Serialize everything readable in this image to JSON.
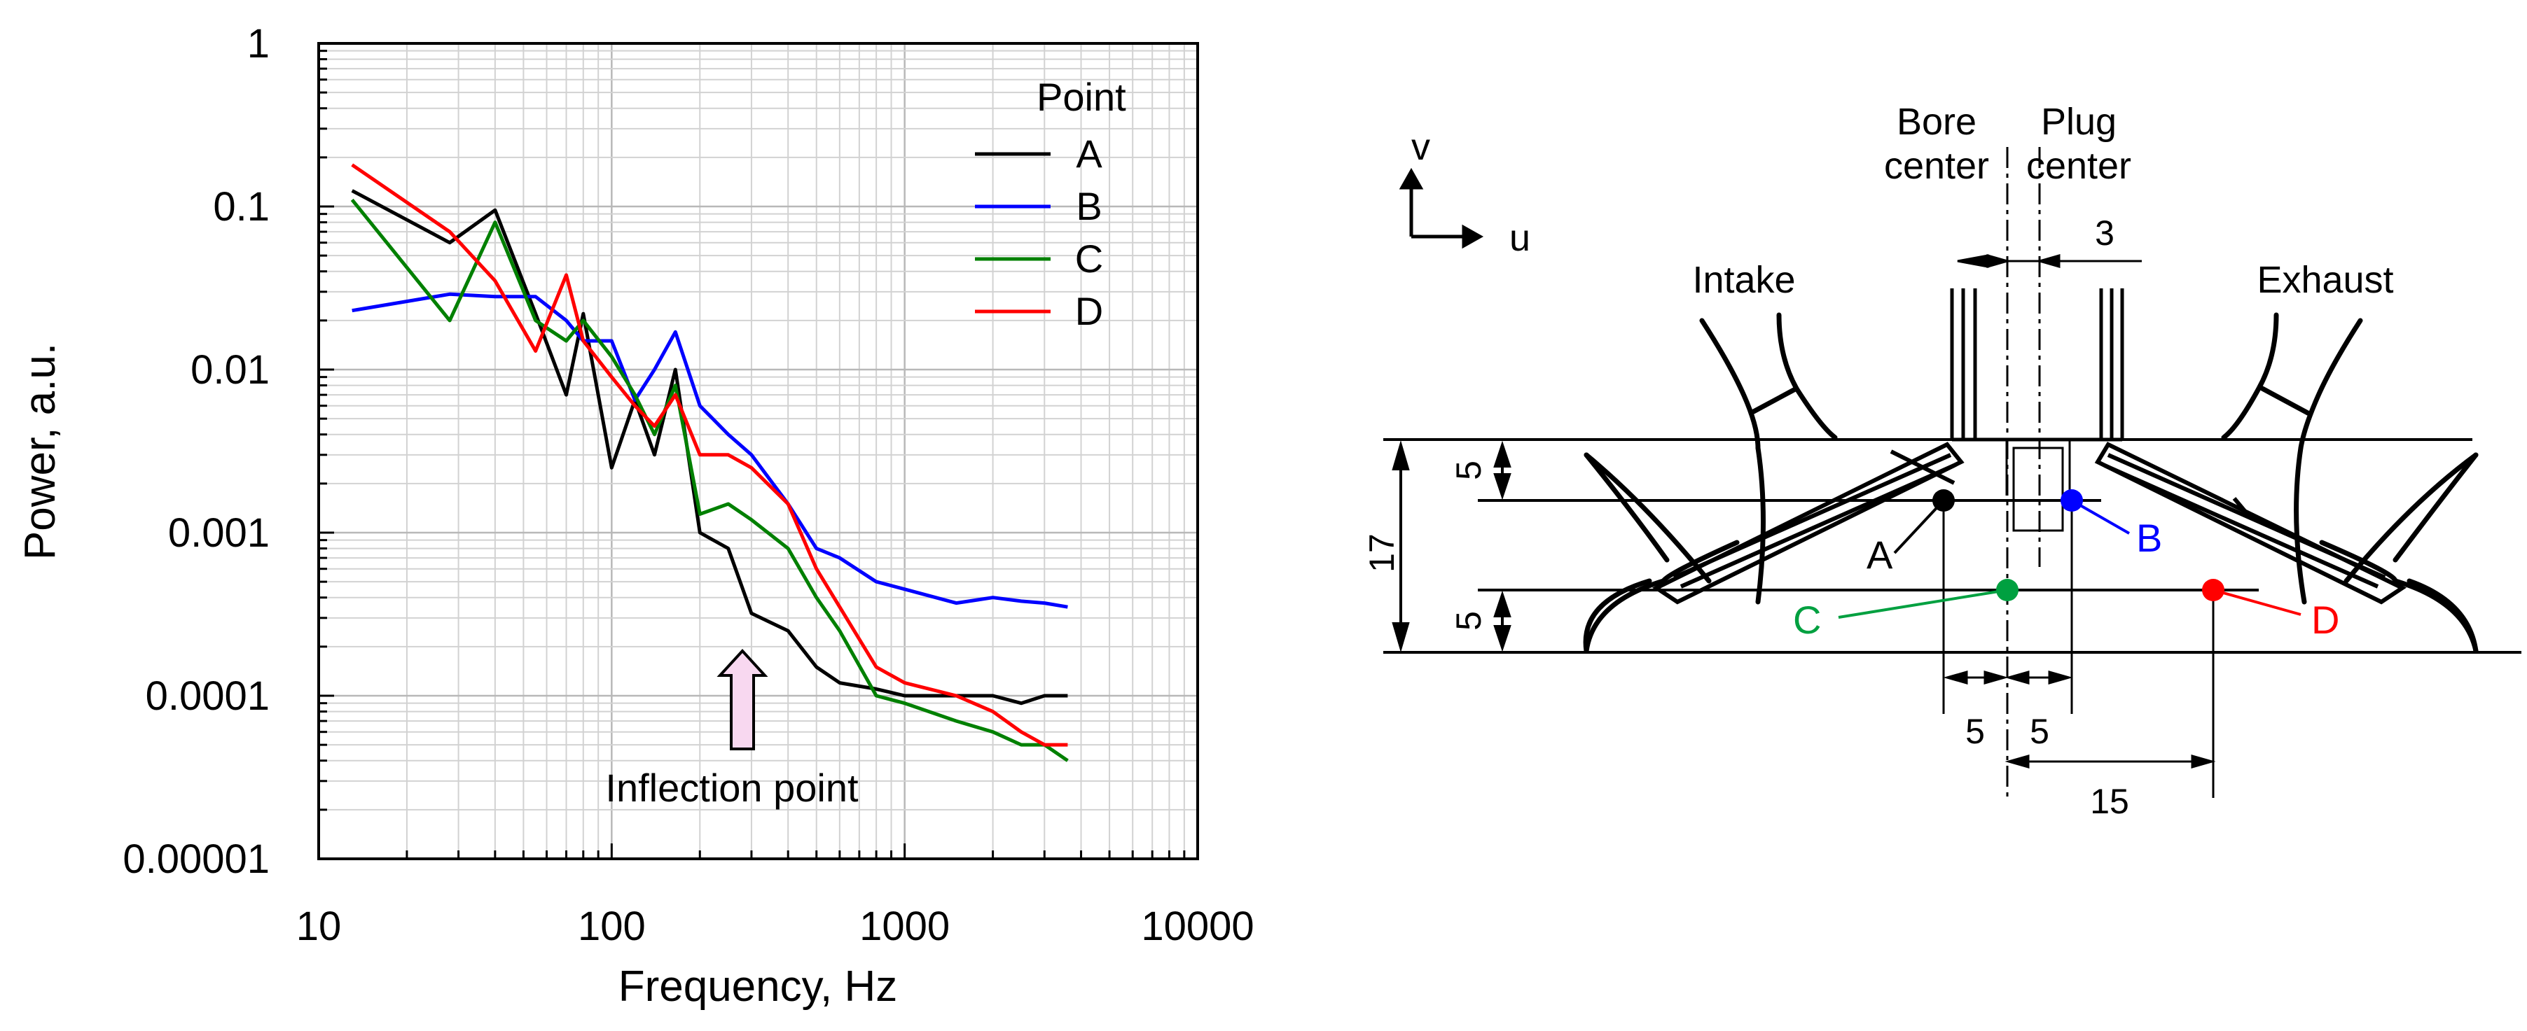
{
  "chart_data": {
    "type": "line",
    "xlabel": "Frequency, Hz",
    "ylabel": "Power, a.u.",
    "xscale": "log",
    "yscale": "log",
    "xlim": [
      10,
      10000
    ],
    "ylim": [
      1e-05,
      1
    ],
    "x_ticks": [
      "10",
      "100",
      "1000",
      "10000"
    ],
    "y_ticks": [
      "0.00001",
      "0.0001",
      "0.001",
      "0.01",
      "0.1",
      "1"
    ],
    "grid": true,
    "legend_title": "Point",
    "legend_position": "top-right",
    "annotation": "Inflection point",
    "annotation_x": 320,
    "series": [
      {
        "name": "A",
        "color": "#000000",
        "x": [
          13,
          28,
          40,
          55,
          70,
          80,
          100,
          120,
          140,
          165,
          200,
          250,
          300,
          400,
          500,
          600,
          800,
          1000,
          1500,
          2000,
          2500,
          3000,
          3600
        ],
        "values": [
          0.125,
          0.06,
          0.095,
          0.022,
          0.007,
          0.022,
          0.0025,
          0.0065,
          0.003,
          0.01,
          0.001,
          0.0008,
          0.00032,
          0.00025,
          0.00015,
          0.00012,
          0.00011,
          0.0001,
          0.0001,
          0.0001,
          9e-05,
          0.0001,
          0.0001
        ]
      },
      {
        "name": "B",
        "color": "#0000ff",
        "x": [
          13,
          28,
          40,
          55,
          70,
          80,
          100,
          120,
          140,
          165,
          200,
          250,
          300,
          400,
          500,
          600,
          800,
          1000,
          1500,
          2000,
          2500,
          3000,
          3600
        ],
        "values": [
          0.023,
          0.029,
          0.028,
          0.028,
          0.02,
          0.015,
          0.015,
          0.0065,
          0.01,
          0.017,
          0.006,
          0.004,
          0.003,
          0.0015,
          0.0008,
          0.0007,
          0.0005,
          0.00045,
          0.00037,
          0.0004,
          0.00038,
          0.00037,
          0.00035
        ]
      },
      {
        "name": "C",
        "color": "#008000",
        "x": [
          13,
          28,
          40,
          55,
          70,
          80,
          100,
          120,
          140,
          165,
          200,
          250,
          300,
          400,
          500,
          600,
          800,
          1000,
          1500,
          2000,
          2500,
          3000,
          3600
        ],
        "values": [
          0.11,
          0.02,
          0.08,
          0.02,
          0.015,
          0.02,
          0.012,
          0.007,
          0.004,
          0.008,
          0.0013,
          0.0015,
          0.0012,
          0.0008,
          0.0004,
          0.00025,
          0.0001,
          9e-05,
          7e-05,
          6e-05,
          5e-05,
          5e-05,
          4e-05
        ]
      },
      {
        "name": "D",
        "color": "#ff0000",
        "x": [
          13,
          28,
          40,
          55,
          70,
          80,
          100,
          120,
          140,
          165,
          200,
          250,
          300,
          400,
          500,
          600,
          800,
          1000,
          1500,
          2000,
          2500,
          3000,
          3600
        ],
        "values": [
          0.18,
          0.07,
          0.035,
          0.013,
          0.038,
          0.015,
          0.009,
          0.006,
          0.0045,
          0.007,
          0.003,
          0.003,
          0.0025,
          0.0015,
          0.0006,
          0.00035,
          0.00015,
          0.00012,
          0.0001,
          8e-05,
          6e-05,
          5e-05,
          5e-05
        ]
      }
    ]
  },
  "diagram": {
    "axes": {
      "v": "v",
      "u": "u"
    },
    "labels": {
      "bore_center_1": "Bore",
      "bore_center_2": "center",
      "plug_center_1": "Plug",
      "plug_center_2": "center",
      "intake": "Intake",
      "exhaust": "Exhaust"
    },
    "dimensions": {
      "d3": "3",
      "d5_top": "5",
      "d17": "17",
      "d5_bottom": "5",
      "d5_left": "5",
      "d5_right": "5",
      "d15": "15"
    },
    "points": [
      {
        "name": "A",
        "color": "#000000"
      },
      {
        "name": "B",
        "color": "#0000ff"
      },
      {
        "name": "C",
        "color": "#00a040"
      },
      {
        "name": "D",
        "color": "#ff0000"
      }
    ]
  }
}
